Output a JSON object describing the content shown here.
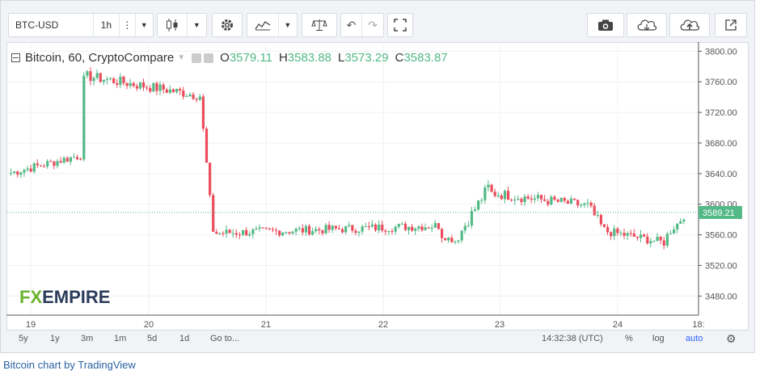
{
  "toolbar": {
    "symbol": "BTC-USD",
    "interval": "1h",
    "icons": [
      "candles-icon",
      "gear-icon",
      "indicators-icon",
      "compare-icon",
      "undo-icon",
      "redo-icon",
      "fullscreen-icon",
      "camera-icon",
      "cloud-download-icon",
      "cloud-upload-icon",
      "popout-icon"
    ]
  },
  "legend": {
    "title": "Bitcoin, 60, CryptoCompare",
    "o_label": "O",
    "o_value": "3579.11",
    "h_label": "H",
    "h_value": "3583.88",
    "l_label": "L",
    "l_value": "3573.29",
    "c_label": "C",
    "c_value": "3583.87"
  },
  "watermark": {
    "part1": "FX",
    "part2": "EMPIRE"
  },
  "colors": {
    "up": "#53b987",
    "down": "#eb4d5c",
    "text": "#333333",
    "price_tag": "#53b987",
    "accent": "#2962a3"
  },
  "chart_data": {
    "type": "candlestick",
    "x_tick_labels": [
      "19",
      "20",
      "21",
      "22",
      "23",
      "24",
      "18:"
    ],
    "y_tick_labels": [
      "3800.00",
      "3760.00",
      "3720.00",
      "3680.00",
      "3640.00",
      "3600.00",
      "3560.00",
      "3520.00",
      "3480.00"
    ],
    "ylim": [
      3455,
      3812
    ],
    "current_price": 3589.21,
    "current_price_label": "3589.21",
    "days": [
      "19",
      "20",
      "21",
      "22",
      "23",
      "24"
    ],
    "segments": [
      {
        "from": 0,
        "to": 22,
        "start": 3640,
        "end": 3664,
        "noise": 6
      },
      {
        "from": 22,
        "to": 23,
        "start": 3664,
        "end": 3768,
        "noise": 0
      },
      {
        "from": 23,
        "to": 58,
        "start": 3768,
        "end": 3742,
        "noise": 7
      },
      {
        "from": 58,
        "to": 62,
        "start": 3742,
        "end": 3565,
        "noise": 3
      },
      {
        "from": 62,
        "to": 130,
        "start": 3562,
        "end": 3572,
        "noise": 6
      },
      {
        "from": 130,
        "to": 135,
        "start": 3560,
        "end": 3552,
        "noise": 4
      },
      {
        "from": 135,
        "to": 145,
        "start": 3552,
        "end": 3622,
        "noise": 8
      },
      {
        "from": 145,
        "to": 175,
        "start": 3615,
        "end": 3598,
        "noise": 7
      },
      {
        "from": 175,
        "to": 180,
        "start": 3598,
        "end": 3565,
        "noise": 8
      },
      {
        "from": 180,
        "to": 198,
        "start": 3565,
        "end": 3550,
        "noise": 6
      },
      {
        "from": 198,
        "to": 204,
        "start": 3555,
        "end": 3583.87,
        "noise": 4
      }
    ]
  },
  "bottom": {
    "ranges": [
      "5y",
      "1y",
      "3m",
      "1m",
      "5d",
      "1d"
    ],
    "goto": "Go to...",
    "time": "14:32:38 (UTC)",
    "percent": "%",
    "log": "log",
    "auto": "auto"
  },
  "credit": "Bitcoin chart by TradingView"
}
